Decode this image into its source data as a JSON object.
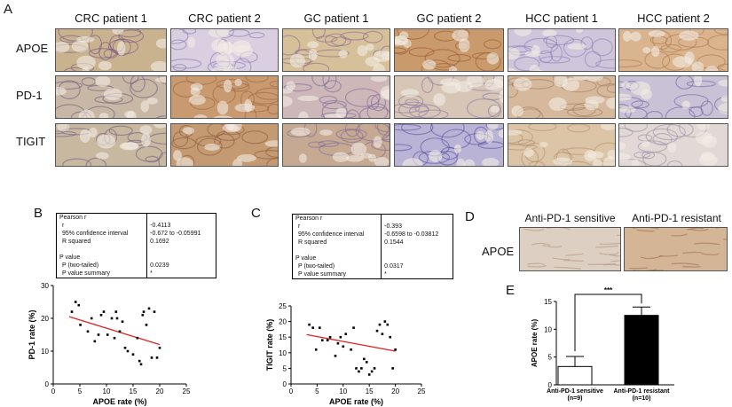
{
  "panels": {
    "A": "A",
    "B": "B",
    "C": "C",
    "D": "D",
    "E": "E"
  },
  "panel_a": {
    "columns": [
      "CRC patient 1",
      "CRC patient 2",
      "GC patient 1",
      "GC patient 2",
      "HCC patient 1",
      "HCC patient 2"
    ],
    "rows": [
      "APOE",
      "PD-1",
      "TIGIT"
    ]
  },
  "stats_b": {
    "header": "Pearson r",
    "rows": [
      {
        "label": "r",
        "value": "-0.4113"
      },
      {
        "label": "95% confidence interval",
        "value": "-0.672 to -0.05991"
      },
      {
        "label": "R squared",
        "value": "0.1692"
      }
    ],
    "p_header": "P value",
    "p_rows": [
      {
        "label": "P (two-tailed)",
        "value": "0.0239"
      },
      {
        "label": "P value summary",
        "value": "*"
      }
    ]
  },
  "stats_c": {
    "header": "Pearson r",
    "rows": [
      {
        "label": "r",
        "value": "-0.393"
      },
      {
        "label": "95% confidence interval",
        "value": "-0.6598 to -0.03812"
      },
      {
        "label": "R squared",
        "value": "0.1544"
      }
    ],
    "p_header": "P value",
    "p_rows": [
      {
        "label": "P (two-tailed)",
        "value": "0.0317"
      },
      {
        "label": "P value summary",
        "value": "*"
      }
    ]
  },
  "panel_d": {
    "columns": [
      "Anti-PD-1 sensitive",
      "Anti-PD-1 resistant"
    ],
    "row": "APOE"
  },
  "chart_data": [
    {
      "type": "scatter",
      "panel": "B",
      "xlabel": "APOE rate (%)",
      "ylabel": "PD-1 rate (%)",
      "xlim": [
        0,
        25
      ],
      "ylim": [
        0,
        30
      ],
      "xticks": [
        0,
        5,
        10,
        15,
        20,
        25
      ],
      "yticks": [
        0,
        10,
        20,
        30
      ],
      "x": [
        3.5,
        4.2,
        4.8,
        5.1,
        6.5,
        7.2,
        7.8,
        8.5,
        9,
        9.5,
        10.2,
        11,
        11.5,
        11.8,
        12,
        12.5,
        13,
        13.5,
        14,
        15,
        15.8,
        16.2,
        16.5,
        16.8,
        17,
        17.5,
        18,
        18.5,
        19,
        19.5,
        20
      ],
      "y": [
        22,
        25,
        24,
        18,
        16,
        20,
        13,
        15,
        21,
        22,
        15,
        20,
        14,
        22,
        20,
        16,
        19,
        11,
        10,
        9,
        14,
        7,
        6,
        21,
        22,
        18,
        23,
        8,
        22,
        8,
        11
      ],
      "fit": {
        "x": [
          3,
          20
        ],
        "y": [
          20.5,
          12
        ]
      }
    },
    {
      "type": "scatter",
      "panel": "C",
      "xlabel": "APOE rate (%)",
      "ylabel": "TIGIT rate (%)",
      "xlim": [
        0,
        25
      ],
      "ylim": [
        0,
        25
      ],
      "xticks": [
        0,
        5,
        10,
        15,
        20,
        25
      ],
      "yticks": [
        0,
        5,
        10,
        15,
        20,
        25
      ],
      "x": [
        3.5,
        4.2,
        4.8,
        5.5,
        6,
        7,
        7.5,
        8.5,
        9,
        9.5,
        10,
        10.5,
        11.5,
        12,
        12.5,
        13,
        13.5,
        14,
        14.5,
        15,
        15.5,
        16,
        16.5,
        17,
        17.5,
        18,
        18.5,
        19,
        19.5,
        20
      ],
      "y": [
        19,
        18,
        11,
        18,
        14,
        14,
        15,
        9,
        13,
        15,
        12,
        16,
        11,
        18,
        5,
        4,
        5,
        8,
        7,
        3,
        4,
        5,
        17,
        19,
        16,
        20,
        19,
        15,
        5,
        11
      ],
      "fit": {
        "x": [
          3,
          20
        ],
        "y": [
          15.8,
          10.5
        ]
      }
    },
    {
      "type": "bar",
      "panel": "E",
      "ylabel": "APOE rate (%)",
      "ylim": [
        0,
        15
      ],
      "yticks": [
        0,
        5,
        10,
        15
      ],
      "categories": [
        "Anti-PD-1 sensitive",
        "Anti-PD-1 resistant"
      ],
      "category_n": [
        "(n=9)",
        "(n=10)"
      ],
      "values": [
        3.3,
        12.5
      ],
      "errors": [
        1.8,
        1.5
      ],
      "fills": [
        "#ffffff",
        "#000000"
      ],
      "significance": "***"
    }
  ]
}
